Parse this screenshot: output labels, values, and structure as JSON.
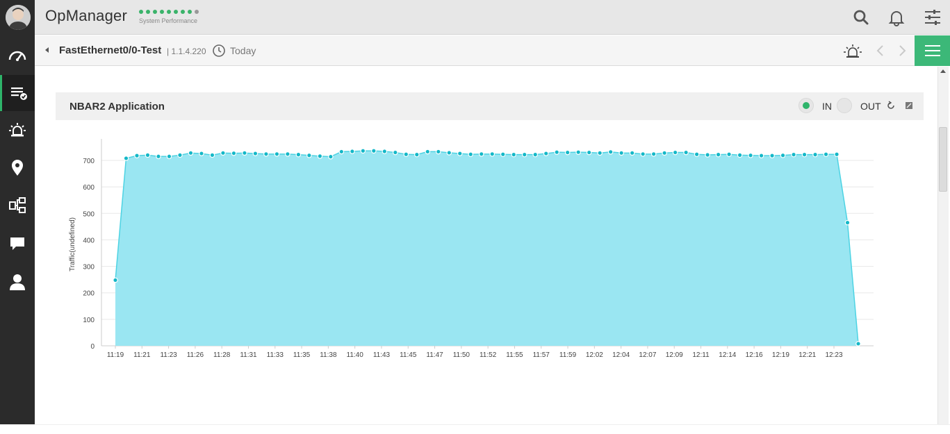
{
  "header": {
    "app_title": "OpManager",
    "perf_label": "System Performance",
    "perf_dots_green": 8,
    "perf_dots_gray": 1,
    "icons": [
      "search-icon",
      "bell-icon",
      "settings-sliders-icon"
    ]
  },
  "sidebar": {
    "items": [
      {
        "name": "dashboard",
        "icon": "speedometer-icon"
      },
      {
        "name": "inventory",
        "icon": "list-check-icon",
        "active": true
      },
      {
        "name": "alarms",
        "icon": "alarm-icon"
      },
      {
        "name": "maps",
        "icon": "location-pin-icon"
      },
      {
        "name": "workflow",
        "icon": "workflow-icon"
      },
      {
        "name": "chat",
        "icon": "chat-bubble-icon"
      },
      {
        "name": "users",
        "icon": "user-icon"
      }
    ]
  },
  "subheader": {
    "interface_name": "FastEthernet0/0-Test",
    "separator": "|",
    "ip": "1.1.4.220",
    "period": "Today"
  },
  "panel": {
    "title": "NBAR2 Application",
    "toggle_in": "IN",
    "toggle_out": "OUT",
    "selected": "IN"
  },
  "colors": {
    "accent_green": "#3cb878",
    "sidebar_bg": "#2b2b2b",
    "area_fill": "#9ae6f2",
    "line_color": "#4dd3e3",
    "point_color": "#14b8c8"
  },
  "chart_data": {
    "type": "area",
    "ylabel": "Traffic(undefined)",
    "xlabel": "",
    "ylim": [
      0,
      750
    ],
    "yticks": [
      0,
      100,
      200,
      300,
      400,
      500,
      600,
      700
    ],
    "xtick_labels": [
      "11:19",
      "11:21",
      "11:23",
      "11:26",
      "11:28",
      "11:31",
      "11:33",
      "11:35",
      "11:38",
      "11:40",
      "11:43",
      "11:45",
      "11:47",
      "11:50",
      "11:52",
      "11:55",
      "11:57",
      "11:59",
      "12:02",
      "12:04",
      "12:07",
      "12:09",
      "12:11",
      "12:14",
      "12:16",
      "12:19",
      "12:21",
      "12:23"
    ],
    "grid": true,
    "series": [
      {
        "values": [
          248,
          708,
          718,
          720,
          715,
          715,
          720,
          728,
          726,
          720,
          728,
          727,
          728,
          726,
          724,
          724,
          724,
          722,
          719,
          716,
          714,
          733,
          734,
          736,
          736,
          734,
          730,
          723,
          722,
          733,
          733,
          729,
          726,
          723,
          724,
          724,
          723,
          722,
          722,
          722,
          726,
          731,
          730,
          731,
          730,
          728,
          732,
          728,
          728,
          724,
          724,
          728,
          730,
          730,
          723,
          721,
          722,
          723,
          720,
          719,
          718,
          718,
          719,
          722,
          722,
          722,
          723,
          723,
          465,
          8
        ]
      }
    ]
  }
}
